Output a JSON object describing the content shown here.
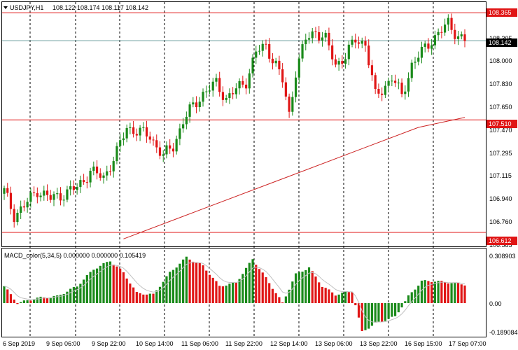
{
  "colors": {
    "bull": "#1a8a1a",
    "bear": "#e01515",
    "level": "#e01515",
    "ma": "#cc2222",
    "current": "#6a9c9c",
    "signal": "#c0c0c0",
    "grid": "#000000",
    "frame": "#000000"
  },
  "main_header": {
    "symbol": "USDJPY,H1",
    "ohlc": "108.122 108.174 108.117 108.142"
  },
  "macd_header": {
    "text": "MACD_color(5,34,5) 0.000000 0.000000 0.105419"
  },
  "price_scale": {
    "labels": [
      "108.305",
      "108.000",
      "107.830",
      "107.650",
      "107.470",
      "107.295",
      "107.115",
      "106.940",
      "106.760",
      "106.585"
    ]
  },
  "price_tags": {
    "resistance": "108.365",
    "current": "108.142",
    "support_mid": "107.510",
    "support_low": "106.612"
  },
  "macd_scale": {
    "labels": [
      "0.308903",
      "0.00",
      "-0.189084"
    ]
  },
  "time_axis": {
    "labels": [
      "6 Sep 2019",
      "9 Sep 06:00",
      "9 Sep 22:00",
      "10 Sep 14:00",
      "11 Sep 06:00",
      "11 Sep 22:00",
      "12 Sep 14:00",
      "13 Sep 06:00",
      "13 Sep 22:00",
      "16 Sep 15:00",
      "17 Sep 07:00"
    ]
  },
  "chart_data": {
    "type": "candlestick",
    "title": "USDJPY,H1",
    "ylim": [
      106.5,
      108.45
    ],
    "horizontal_levels": [
      108.365,
      107.51,
      106.612
    ],
    "current_price": 108.142,
    "close_path": [
      [
        0,
        106.94
      ],
      [
        3,
        106.75
      ],
      [
        6,
        106.82
      ],
      [
        10,
        106.95
      ],
      [
        14,
        106.88
      ],
      [
        18,
        106.92
      ],
      [
        22,
        106.97
      ],
      [
        26,
        107.1
      ],
      [
        30,
        107.05
      ],
      [
        34,
        107.25
      ],
      [
        37,
        107.45
      ],
      [
        40,
        107.42
      ],
      [
        44,
        107.38
      ],
      [
        48,
        107.22
      ],
      [
        51,
        107.3
      ],
      [
        54,
        107.5
      ],
      [
        57,
        107.62
      ],
      [
        60,
        107.72
      ],
      [
        64,
        107.8
      ],
      [
        67,
        107.68
      ],
      [
        70,
        107.75
      ],
      [
        73,
        107.82
      ],
      [
        76,
        108.05
      ],
      [
        79,
        108.1
      ],
      [
        82,
        107.95
      ],
      [
        84,
        107.82
      ],
      [
        86,
        107.55
      ],
      [
        88,
        107.9
      ],
      [
        91,
        108.15
      ],
      [
        94,
        108.22
      ],
      [
        97,
        108.15
      ],
      [
        100,
        107.95
      ],
      [
        103,
        108.02
      ],
      [
        106,
        108.15
      ],
      [
        109,
        108.12
      ],
      [
        112,
        107.7
      ],
      [
        114,
        107.75
      ],
      [
        117,
        107.85
      ],
      [
        120,
        107.7
      ],
      [
        123,
        107.95
      ],
      [
        126,
        108.05
      ],
      [
        129,
        108.15
      ],
      [
        132,
        108.22
      ],
      [
        134,
        108.28
      ],
      [
        137,
        108.18
      ],
      [
        139,
        108.14
      ]
    ],
    "moving_average": [
      [
        36,
        106.56
      ],
      [
        60,
        106.8
      ],
      [
        85,
        107.05
      ],
      [
        110,
        107.3
      ],
      [
        125,
        107.45
      ],
      [
        139,
        107.53
      ]
    ],
    "macd_ylim": [
      -0.19,
      0.31
    ],
    "macd_histogram_path": [
      [
        0,
        0.1
      ],
      [
        4,
        0.0
      ],
      [
        10,
        0.03
      ],
      [
        16,
        0.04
      ],
      [
        22,
        0.1
      ],
      [
        27,
        0.2
      ],
      [
        32,
        0.25
      ],
      [
        36,
        0.18
      ],
      [
        40,
        0.06
      ],
      [
        45,
        0.05
      ],
      [
        50,
        0.18
      ],
      [
        55,
        0.27
      ],
      [
        60,
        0.22
      ],
      [
        65,
        0.1
      ],
      [
        70,
        0.12
      ],
      [
        75,
        0.26
      ],
      [
        80,
        0.12
      ],
      [
        84,
        0.0
      ],
      [
        88,
        0.17
      ],
      [
        92,
        0.21
      ],
      [
        96,
        0.1
      ],
      [
        100,
        0.05
      ],
      [
        105,
        0.07
      ],
      [
        108,
        -0.17
      ],
      [
        112,
        -0.12
      ],
      [
        118,
        -0.08
      ],
      [
        122,
        0.04
      ],
      [
        126,
        0.13
      ],
      [
        130,
        0.13
      ],
      [
        135,
        0.12
      ],
      [
        139,
        0.11
      ]
    ],
    "macd_values": [
      0.308903,
      0.0,
      -0.189084
    ]
  }
}
